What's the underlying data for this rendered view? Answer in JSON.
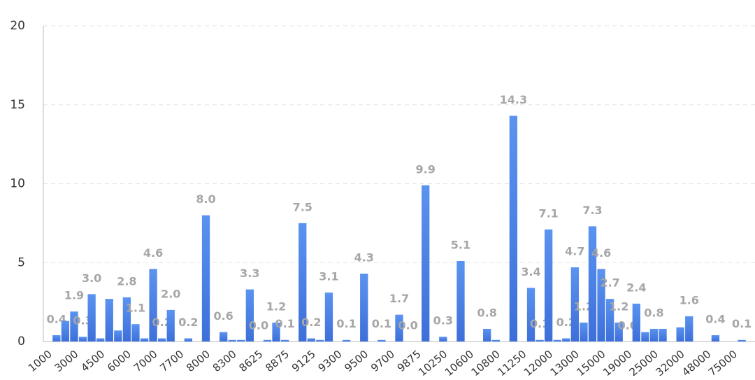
{
  "chart_data": {
    "type": "bar",
    "categories": [
      "1000",
      null,
      null,
      "3000",
      null,
      null,
      "4500",
      null,
      null,
      "6000",
      null,
      null,
      "7000",
      null,
      null,
      "7700",
      null,
      null,
      "8000",
      null,
      null,
      "8300",
      null,
      null,
      "8625",
      null,
      null,
      "8875",
      null,
      null,
      "9125",
      null,
      null,
      "9300",
      null,
      null,
      "9500",
      null,
      null,
      "9700",
      null,
      null,
      "9875",
      null,
      null,
      "10250",
      null,
      null,
      "10600",
      null,
      null,
      "10800",
      null,
      null,
      "11250",
      null,
      null,
      "12000",
      null,
      null,
      "13000",
      null,
      null,
      "15000",
      null,
      null,
      "19000",
      null,
      null,
      "25000",
      null,
      null,
      "32000",
      null,
      null,
      "48000",
      null,
      null,
      "75000",
      null,
      null
    ],
    "values": [
      0,
      0.4,
      1.3,
      1.9,
      0.3,
      3.0,
      0.2,
      2.7,
      0.7,
      2.8,
      1.1,
      0.2,
      4.6,
      0.2,
      2.0,
      0,
      0.2,
      0,
      8.0,
      0,
      0.6,
      0.1,
      0.1,
      3.3,
      0.0,
      0.1,
      1.2,
      0.1,
      0,
      7.5,
      0.2,
      0.1,
      3.1,
      0,
      0.1,
      0,
      4.3,
      0,
      0.1,
      0,
      1.7,
      0.0,
      0,
      9.9,
      0,
      0.3,
      0,
      5.1,
      0,
      0,
      0.8,
      0.1,
      0,
      14.3,
      0,
      3.4,
      0.1,
      7.1,
      0.1,
      0.2,
      4.7,
      1.2,
      7.3,
      4.6,
      2.7,
      1.2,
      0.0,
      2.4,
      0.6,
      0.8,
      0.8,
      0,
      0.9,
      1.6,
      0,
      0,
      0.4,
      0,
      0,
      0.1,
      0
    ],
    "value_labels": [
      null,
      "0.4",
      null,
      "1.9",
      "0.3",
      "3.0",
      null,
      null,
      null,
      "2.8",
      "1.1",
      null,
      "4.6",
      "0.2",
      "2.0",
      null,
      "0.2",
      null,
      "8.0",
      null,
      "0.6",
      null,
      null,
      "3.3",
      "0.0",
      null,
      "1.2",
      "0.1",
      null,
      "7.5",
      "0.2",
      null,
      "3.1",
      null,
      "0.1",
      null,
      "4.3",
      null,
      "0.1",
      null,
      "1.7",
      "0.0",
      null,
      "9.9",
      null,
      "0.3",
      null,
      "5.1",
      null,
      null,
      "0.8",
      null,
      null,
      "14.3",
      null,
      "3.4",
      "0.1",
      "7.1",
      null,
      "0.2",
      "4.7",
      "1.2",
      "7.3",
      "4.6",
      "2.7",
      "1.2",
      "0.0",
      "2.4",
      null,
      "0.8",
      null,
      null,
      null,
      "1.6",
      null,
      null,
      "0.4",
      null,
      null,
      "0.1",
      null
    ],
    "color": "#4a7fe6",
    "ylim": [
      0,
      20
    ],
    "yticks": [
      0,
      5,
      10,
      15,
      20
    ],
    "grid": true
  }
}
